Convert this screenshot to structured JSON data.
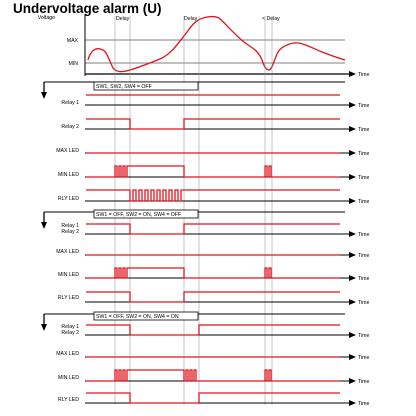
{
  "title": "Undervoltage alarm (U)",
  "colors": {
    "signal": "#e0141c",
    "axis": "#000000",
    "guide": "#8c8c8c",
    "background": "#ffffff"
  },
  "voltage_panel": {
    "y_axis_label": "Voltage",
    "max_label": "MAX",
    "min_label": "MIN",
    "time_label": "Time",
    "delay_labels": [
      "Delay",
      "Delay",
      "< Delay"
    ]
  },
  "time_label": "Time",
  "sections": [
    {
      "config": "SW1, SW2, SW4 = OFF",
      "rows": [
        {
          "label": "Relay 1"
        },
        {
          "label": "Relay 2"
        },
        {
          "label": "MAX  LED"
        },
        {
          "label": "MIN  LED"
        },
        {
          "label": "RLY  LED"
        }
      ]
    },
    {
      "config": "SW1 = OFF, SW2 = ON, SW4 = OFF",
      "rows": [
        {
          "label": "Relay 1",
          "label2": "Relay 2"
        },
        {
          "label": "MAX  LED"
        },
        {
          "label": "MIN  LED"
        },
        {
          "label": "RLY  LED"
        }
      ]
    },
    {
      "config": "SW1 = OFF, SW2 = ON, SW4 = ON",
      "rows": [
        {
          "label": "Relay 1",
          "label2": "Relay 2"
        },
        {
          "label": "MAX  LED"
        },
        {
          "label": "MIN  LED"
        },
        {
          "label": "RLY  LED"
        }
      ]
    }
  ]
}
